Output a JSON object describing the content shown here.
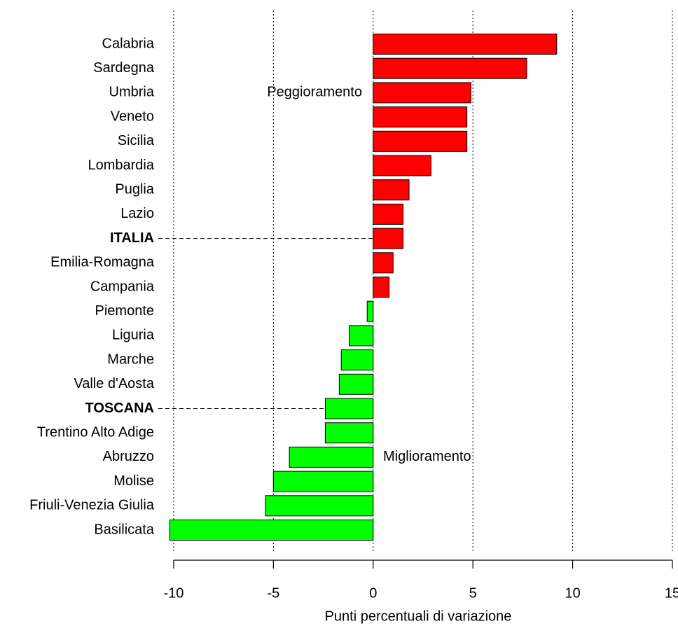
{
  "chart_data": {
    "type": "barh",
    "x_label": "Punti percentuali di variazione",
    "categories": [
      "Calabria",
      "Sardegna",
      "Umbria",
      "Veneto",
      "Sicilia",
      "Lombardia",
      "Puglia",
      "Lazio",
      "ITALIA",
      "Emilia-Romagna",
      "Campania",
      "Piemonte",
      "Liguria",
      "Marche",
      "Valle d'Aosta",
      "TOSCANA",
      "Trentino Alto Adige",
      "Abruzzo",
      "Molise",
      "Friuli-Venezia Giulia",
      "Basilicata"
    ],
    "values": [
      9.2,
      7.7,
      4.9,
      4.7,
      4.7,
      2.9,
      1.8,
      1.5,
      1.5,
      1.0,
      0.8,
      -0.3,
      -1.2,
      -1.6,
      -1.7,
      -2.4,
      -2.4,
      -4.2,
      -5.0,
      -5.4,
      -10.2
    ],
    "positive_color": "#ff0000",
    "negative_color": "#00ff00",
    "highlight": [
      8,
      15
    ],
    "xlim": [
      -10.7,
      15
    ],
    "xticks": [
      -10,
      -5,
      0,
      5,
      10,
      15
    ],
    "grid": true,
    "annotations": [
      {
        "text": "Peggioramento",
        "color": "#8b1a1a"
      },
      {
        "text": "Miglioramento",
        "color": "#228b22"
      }
    ]
  }
}
